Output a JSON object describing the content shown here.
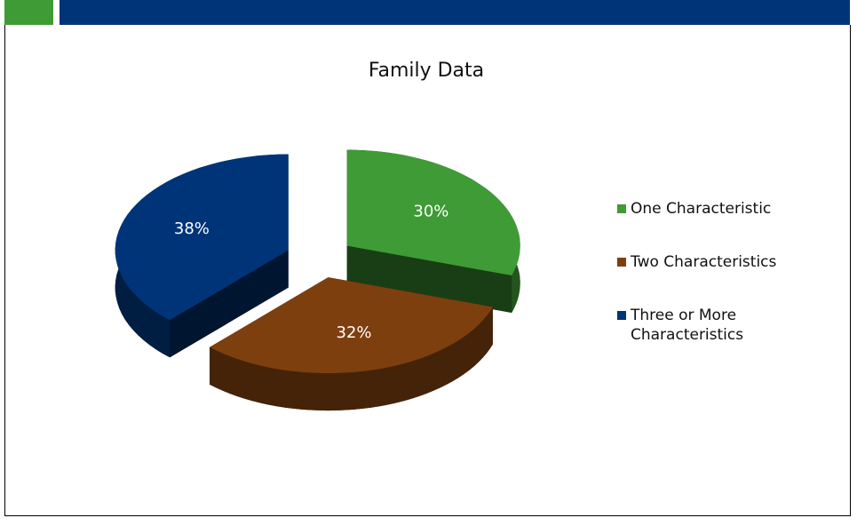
{
  "chart_data": {
    "type": "pie",
    "title": "Family Data",
    "categories": [
      "One Characteristic",
      "Two Characteristics",
      "Three or More Characteristics"
    ],
    "values": [
      30,
      32,
      38
    ],
    "value_labels": [
      "30%",
      "32%",
      "38%"
    ],
    "colors": [
      "#3f9b35",
      "#7e3f0f",
      "#003478"
    ],
    "legend": "right"
  }
}
